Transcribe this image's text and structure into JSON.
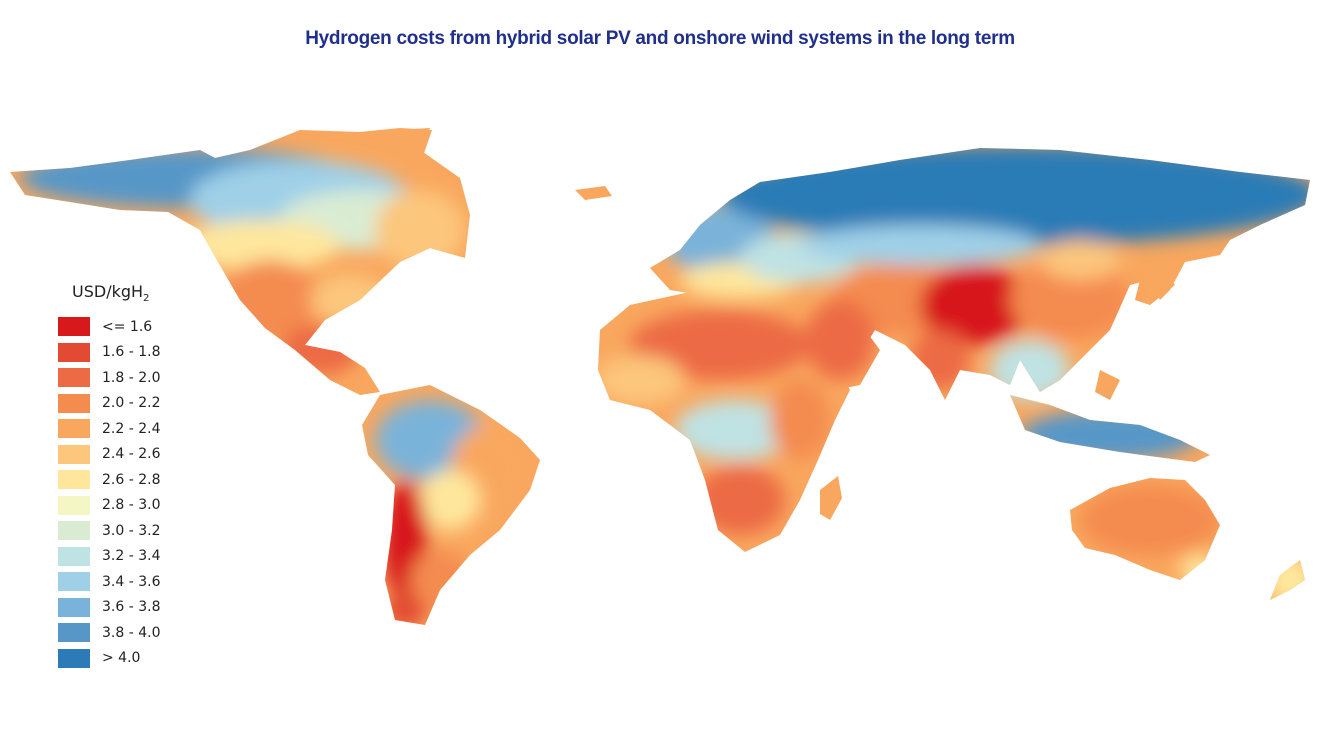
{
  "title": "Hydrogen costs from hybrid solar PV and onshore wind systems in the long term",
  "legend": {
    "title_main": "USD/kgH",
    "title_sub": "2",
    "entries": [
      {
        "label": "<= 1.6",
        "color": "#d7191c"
      },
      {
        "label": "1.6 - 1.8",
        "color": "#e34a33"
      },
      {
        "label": "1.8 - 2.0",
        "color": "#ec6b44"
      },
      {
        "label": "2.0 - 2.2",
        "color": "#f48b4f"
      },
      {
        "label": "2.2 - 2.4",
        "color": "#f9a75e"
      },
      {
        "label": "2.4 - 2.6",
        "color": "#fcc67c"
      },
      {
        "label": "2.6 - 2.8",
        "color": "#fee79c"
      },
      {
        "label": "2.8 - 3.0",
        "color": "#f4f7c4"
      },
      {
        "label": "3.0 - 3.2",
        "color": "#d9ecd3"
      },
      {
        "label": "3.2 - 3.4",
        "color": "#bfe2e3"
      },
      {
        "label": "3.4 - 3.6",
        "color": "#9fd0e8"
      },
      {
        "label": "3.6 - 3.8",
        "color": "#7ab3d9"
      },
      {
        "label": "3.8 - 4.0",
        "color": "#5797c8"
      },
      {
        "label": "> 4.0",
        "color": "#2c7bb6"
      }
    ]
  }
}
